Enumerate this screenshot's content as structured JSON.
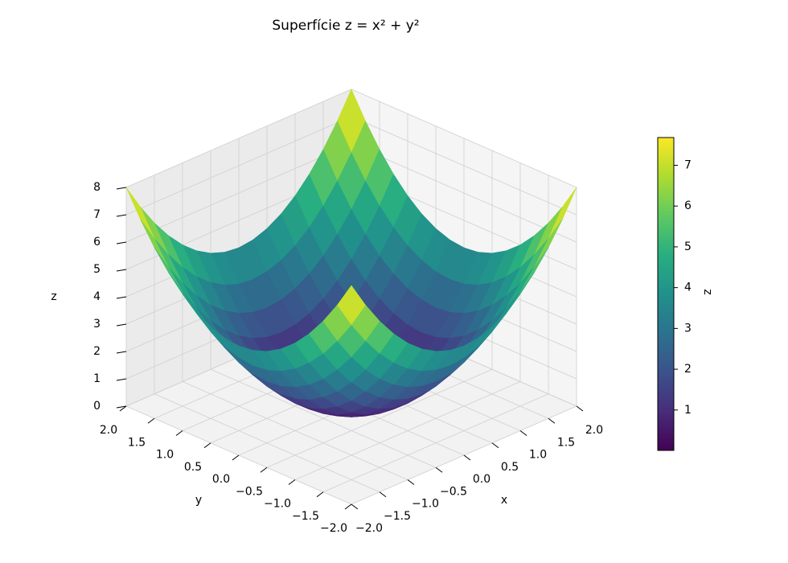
{
  "chart_data": {
    "type": "surface",
    "title": "Superfície z = x² + y²",
    "xlabel": "x",
    "ylabel": "y",
    "zlabel": "z",
    "x": [
      -2,
      -1.75,
      -1.5,
      -1.25,
      -1,
      -0.75,
      -0.5,
      -0.25,
      0,
      0.25,
      0.5,
      0.75,
      1,
      1.25,
      1.5,
      1.75,
      2
    ],
    "y": [
      -2,
      -1.75,
      -1.5,
      -1.25,
      -1,
      -0.75,
      -0.5,
      -0.25,
      0,
      0.25,
      0.5,
      0.75,
      1,
      1.25,
      1.5,
      1.75,
      2
    ],
    "z": [
      [
        8,
        7.0625,
        6.25,
        5.5625,
        5,
        4.5625,
        4.25,
        4.0625,
        4,
        4.0625,
        4.25,
        4.5625,
        5,
        5.5625,
        6.25,
        7.0625,
        8
      ],
      [
        7.0625,
        6.125,
        5.3125,
        4.625,
        4.0625,
        3.625,
        3.3125,
        3.125,
        3.0625,
        3.125,
        3.3125,
        3.625,
        4.0625,
        4.625,
        5.3125,
        6.125,
        7.0625
      ],
      [
        6.25,
        5.3125,
        4.5,
        3.8125,
        3.25,
        2.8125,
        2.5,
        2.3125,
        2.25,
        2.3125,
        2.5,
        2.8125,
        3.25,
        3.8125,
        4.5,
        5.3125,
        6.25
      ],
      [
        5.5625,
        4.625,
        3.8125,
        3.125,
        2.5625,
        2.125,
        1.8125,
        1.625,
        1.5625,
        1.625,
        1.8125,
        2.125,
        2.5625,
        3.125,
        3.8125,
        4.625,
        5.5625
      ],
      [
        5,
        4.0625,
        3.25,
        2.5625,
        2,
        1.5625,
        1.25,
        1.0625,
        1,
        1.0625,
        1.25,
        1.5625,
        2,
        2.5625,
        3.25,
        4.0625,
        5
      ],
      [
        4.5625,
        3.625,
        2.8125,
        2.125,
        1.5625,
        1.125,
        0.8125,
        0.625,
        0.5625,
        0.625,
        0.8125,
        1.125,
        1.5625,
        2.125,
        2.8125,
        3.625,
        4.5625
      ],
      [
        4.25,
        3.3125,
        2.5,
        1.8125,
        1.25,
        0.8125,
        0.5,
        0.3125,
        0.25,
        0.3125,
        0.5,
        0.8125,
        1.25,
        1.8125,
        2.5,
        3.3125,
        4.25
      ],
      [
        4.0625,
        3.125,
        2.3125,
        1.625,
        1.0625,
        0.625,
        0.3125,
        0.125,
        0.0625,
        0.125,
        0.3125,
        0.625,
        1.0625,
        1.625,
        2.3125,
        3.125,
        4.0625
      ],
      [
        4,
        3.0625,
        2.25,
        1.5625,
        1,
        0.5625,
        0.25,
        0.0625,
        0,
        0.0625,
        0.25,
        0.5625,
        1,
        1.5625,
        2.25,
        3.0625,
        4
      ],
      [
        4.0625,
        3.125,
        2.3125,
        1.625,
        1.0625,
        0.625,
        0.3125,
        0.125,
        0.0625,
        0.125,
        0.3125,
        0.625,
        1.0625,
        1.625,
        2.3125,
        3.125,
        4.0625
      ],
      [
        4.25,
        3.3125,
        2.5,
        1.8125,
        1.25,
        0.8125,
        0.5,
        0.3125,
        0.25,
        0.3125,
        0.5,
        0.8125,
        1.25,
        1.8125,
        2.5,
        3.3125,
        4.25
      ],
      [
        4.5625,
        3.625,
        2.8125,
        2.125,
        1.5625,
        1.125,
        0.8125,
        0.625,
        0.5625,
        0.625,
        0.8125,
        1.125,
        1.5625,
        2.125,
        2.8125,
        3.625,
        4.5625
      ],
      [
        5,
        4.0625,
        3.25,
        2.5625,
        2,
        1.5625,
        1.25,
        1.0625,
        1,
        1.0625,
        1.25,
        1.5625,
        2,
        2.5625,
        3.25,
        4.0625,
        5
      ],
      [
        5.5625,
        4.625,
        3.8125,
        3.125,
        2.5625,
        2.125,
        1.8125,
        1.625,
        1.5625,
        1.625,
        1.8125,
        2.125,
        2.5625,
        3.125,
        3.8125,
        4.625,
        5.5625
      ],
      [
        6.25,
        5.3125,
        4.5,
        3.8125,
        3.25,
        2.8125,
        2.5,
        2.3125,
        2.25,
        2.3125,
        2.5,
        2.8125,
        3.25,
        3.8125,
        4.5,
        5.3125,
        6.25
      ],
      [
        7.0625,
        6.125,
        5.3125,
        4.625,
        4.0625,
        3.625,
        3.3125,
        3.125,
        3.0625,
        3.125,
        3.3125,
        3.625,
        4.0625,
        4.625,
        5.3125,
        6.125,
        7.0625
      ],
      [
        8,
        7.0625,
        6.25,
        5.5625,
        5,
        4.5625,
        4.25,
        4.0625,
        4,
        4.0625,
        4.25,
        4.5625,
        5,
        5.5625,
        6.25,
        7.0625,
        8
      ]
    ],
    "xlim": [
      -2,
      2
    ],
    "ylim": [
      -2,
      2
    ],
    "zlim": [
      0,
      8
    ],
    "xticks": [
      {
        "value": -2,
        "label": "−2.0"
      },
      {
        "value": -1.5,
        "label": "−1.5"
      },
      {
        "value": -1,
        "label": "−1.0"
      },
      {
        "value": -0.5,
        "label": "−0.5"
      },
      {
        "value": 0,
        "label": "0.0"
      },
      {
        "value": 0.5,
        "label": "0.5"
      },
      {
        "value": 1,
        "label": "1.0"
      },
      {
        "value": 1.5,
        "label": "1.5"
      },
      {
        "value": 2,
        "label": "2.0"
      }
    ],
    "yticks": [
      {
        "value": -2,
        "label": "−2.0"
      },
      {
        "value": -1.5,
        "label": "−1.5"
      },
      {
        "value": -1,
        "label": "−1.0"
      },
      {
        "value": -0.5,
        "label": "−0.5"
      },
      {
        "value": 0,
        "label": "0.0"
      },
      {
        "value": 0.5,
        "label": "0.5"
      },
      {
        "value": 1,
        "label": "1.0"
      },
      {
        "value": 1.5,
        "label": "1.5"
      },
      {
        "value": 2,
        "label": "2.0"
      }
    ],
    "zticks": [
      0,
      1,
      2,
      3,
      4,
      5,
      6,
      7,
      8
    ],
    "grid": true,
    "colormap": "viridis",
    "colorbar": {
      "label": "z",
      "lim": [
        0.01,
        7.68
      ],
      "ticks": [
        1,
        2,
        3,
        4,
        5,
        6,
        7
      ]
    }
  }
}
